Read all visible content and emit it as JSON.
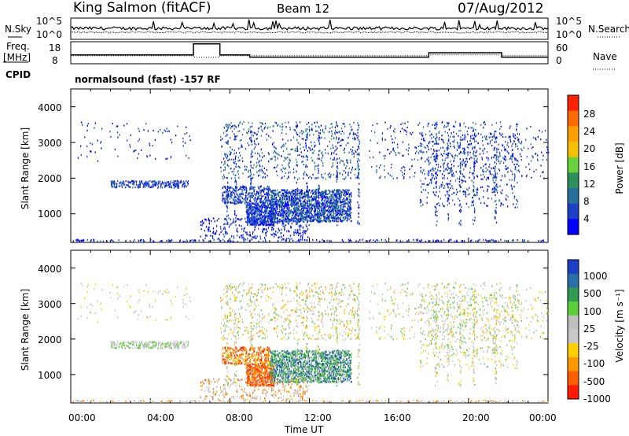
{
  "header": {
    "title": "King Salmon (fitACF)",
    "beam": "Beam 12",
    "date": "07/Aug/2012"
  },
  "nsky_panel": {
    "left_label": "N.Sky",
    "right_label": "N.Search",
    "left_ticks": [
      "10^5",
      "10^0"
    ],
    "right_ticks": [
      "10^5",
      "10^0"
    ]
  },
  "freq_panel": {
    "left_label_1": "Freq.",
    "left_label_2": "[MHz]",
    "right_label": "Nave",
    "left_ticks": [
      "18",
      "8"
    ],
    "right_ticks": [
      "60",
      "0"
    ]
  },
  "cpid": {
    "label": "CPID",
    "program": "normalsound (fast) -157 RF"
  },
  "chart_data": [
    {
      "type": "line",
      "name": "noise",
      "series": [
        {
          "name": "N.Sky",
          "style": "solid"
        },
        {
          "name": "N.Search",
          "style": "dotted"
        }
      ],
      "y_scale": "log",
      "x_range": [
        "00:00",
        "24:00"
      ]
    },
    {
      "type": "line",
      "name": "frequency-nave",
      "series": [
        {
          "name": "Freq.",
          "style": "solid",
          "unit": "MHz",
          "x": [
            "00:00",
            "06:10",
            "06:10",
            "07:30",
            "07:30",
            "09:00",
            "09:00",
            "18:00",
            "18:00",
            "21:40",
            "21:40",
            "24:00"
          ],
          "y": [
            12,
            12,
            17,
            17,
            12,
            12,
            11,
            11,
            13,
            13,
            11,
            11
          ]
        },
        {
          "name": "Nave",
          "style": "dotted",
          "x": [
            "00:00",
            "06:10",
            "06:10",
            "07:30",
            "07:30",
            "18:00",
            "18:00",
            "21:40",
            "21:40",
            "24:00"
          ],
          "y": [
            22,
            22,
            18,
            18,
            22,
            22,
            24,
            24,
            22,
            22
          ]
        }
      ],
      "ylim_left": [
        8,
        18
      ],
      "ylim_right": [
        0,
        60
      ]
    },
    {
      "type": "heatmap",
      "name": "power",
      "ylabel": "Slant Range [km]",
      "yticks": [
        "1000",
        "2000",
        "3000",
        "4000"
      ],
      "ylim": [
        200,
        4500
      ],
      "colorbar_label": "Power [dB]",
      "colorbar_ticks": [
        "4",
        "8",
        "12",
        "16",
        "20",
        "24",
        "28"
      ],
      "colorbar_colors": [
        "#0000ff",
        "#1c3fc8",
        "#276e9b",
        "#2f8f5a",
        "#6ad23b",
        "#f4c000",
        "#ff9f00",
        "#ff6a00",
        "#ff2000"
      ]
    },
    {
      "type": "heatmap",
      "name": "velocity",
      "ylabel": "Slant Range [km]",
      "yticks": [
        "1000",
        "2000",
        "3000",
        "4000"
      ],
      "ylim": [
        200,
        4500
      ],
      "colorbar_label": "Velocity [m s⁻¹]",
      "colorbar_ticks": [
        "1000",
        "500",
        "100",
        "25",
        "-25",
        "-100",
        "-500",
        "-1000"
      ],
      "colorbar_colors": [
        "#1a3fc8",
        "#2a6fa8",
        "#2f9a50",
        "#5ccf3a",
        "#bfbfbf",
        "#c8c8c8",
        "#ffd000",
        "#ff9800",
        "#ff5e00",
        "#ff1a00"
      ],
      "xlabel": "Time UT",
      "xticks": [
        "00:00",
        "04:00",
        "08:00",
        "12:00",
        "16:00",
        "20:00",
        "00:00"
      ]
    }
  ]
}
